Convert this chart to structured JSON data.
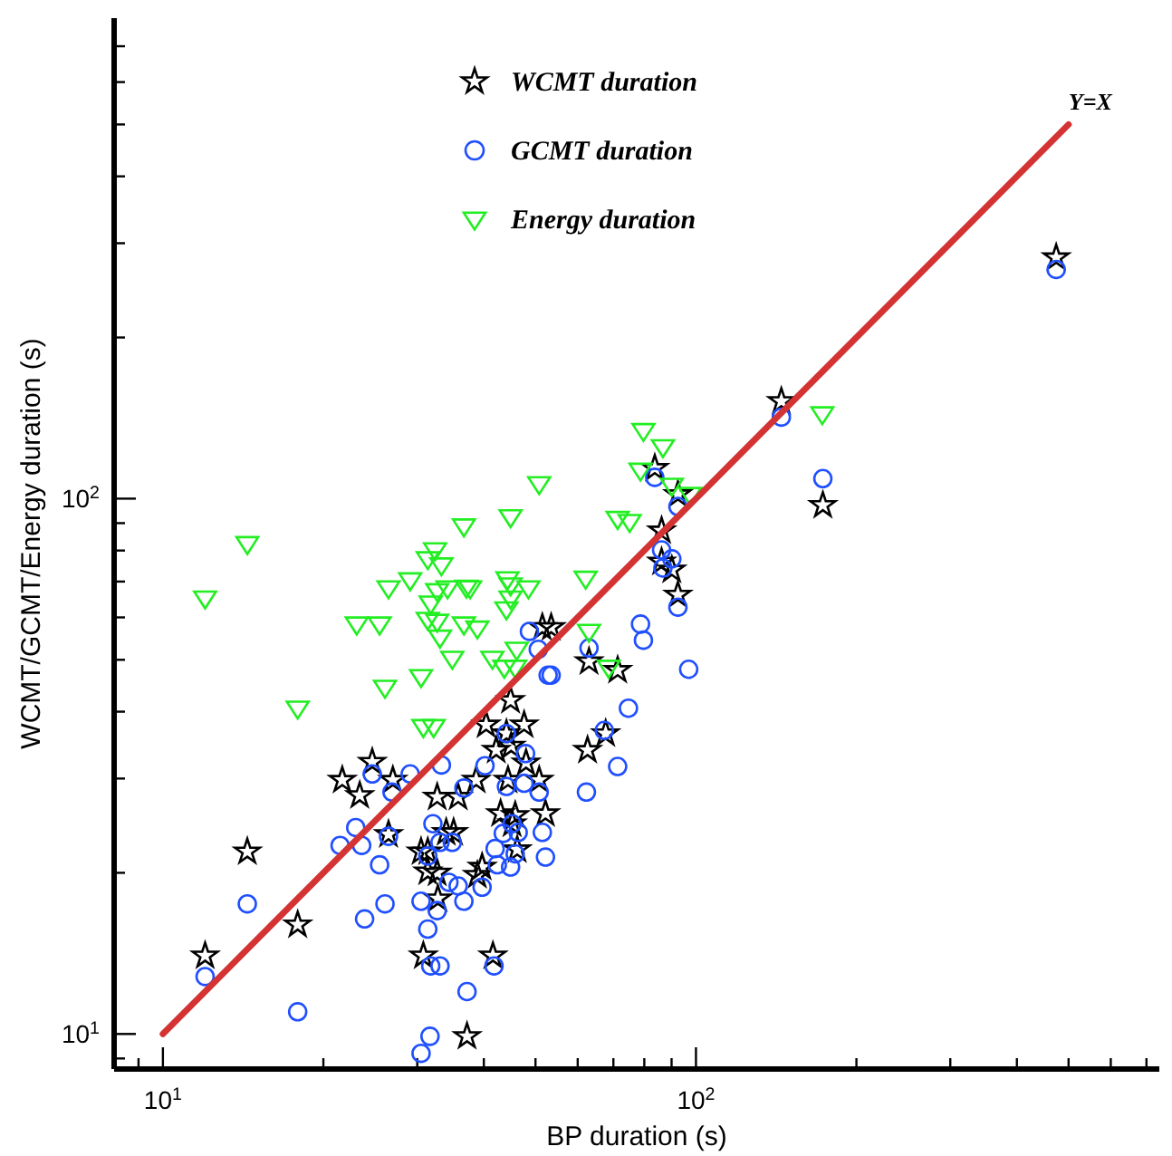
{
  "chart_data": {
    "type": "scatter",
    "xlabel": "BP duration (s)",
    "ylabel": "WCMT/GCMT/Energy duration (s)",
    "log": "xy",
    "grid": false,
    "legend": "top",
    "xlim": [
      8.1,
      740
    ],
    "ylim": [
      8.6,
      790
    ],
    "xticks": [
      {
        "value": 9,
        "label": null
      },
      {
        "value": 10,
        "label": "10$^{1}$"
      },
      {
        "value": 20,
        "label": null
      },
      {
        "value": 30,
        "label": null
      },
      {
        "value": 40,
        "label": null
      },
      {
        "value": 50,
        "label": null
      },
      {
        "value": 60,
        "label": null
      },
      {
        "value": 70,
        "label": null
      },
      {
        "value": 80,
        "label": null
      },
      {
        "value": 90,
        "label": null
      },
      {
        "value": 100,
        "label": "10$^{2}$"
      },
      {
        "value": 200,
        "label": null
      },
      {
        "value": 300,
        "label": null
      },
      {
        "value": 400,
        "label": null
      },
      {
        "value": 500,
        "label": null
      },
      {
        "value": 600,
        "label": null
      },
      {
        "value": 700,
        "label": null
      }
    ],
    "yticks": [
      {
        "value": 9,
        "label": null
      },
      {
        "value": 10,
        "label": "10$^{1}$"
      },
      {
        "value": 20,
        "label": null
      },
      {
        "value": 30,
        "label": null
      },
      {
        "value": 40,
        "label": null
      },
      {
        "value": 50,
        "label": null
      },
      {
        "value": 60,
        "label": null
      },
      {
        "value": 70,
        "label": null
      },
      {
        "value": 80,
        "label": null
      },
      {
        "value": 90,
        "label": null
      },
      {
        "value": 100,
        "label": "10$^{2}$"
      },
      {
        "value": 200,
        "label": null
      },
      {
        "value": 300,
        "label": null
      },
      {
        "value": 400,
        "label": null
      },
      {
        "value": 500,
        "label": null
      },
      {
        "value": 600,
        "label": null
      },
      {
        "value": 700,
        "label": null
      }
    ],
    "annotations": [
      {
        "text": "Y=X",
        "x": 500,
        "y": 500
      }
    ],
    "series": [
      {
        "name": "WCMT duration",
        "color": "#000000",
        "marker": "star",
        "x": [
          12.0,
          14.4,
          17.9,
          21.7,
          23.4,
          24.7,
          27.0,
          26.5,
          30.5,
          31.4,
          31.4,
          32.7,
          32.8,
          30.8,
          37.2,
          32.7,
          35.8,
          34.0,
          35.1,
          38.7,
          40.4,
          42.2,
          45.0,
          44.1,
          47.6,
          48.0,
          44.4,
          50.8,
          43.0,
          45.8,
          45.2,
          52.2,
          46.2,
          39.7,
          38.9,
          41.6,
          44.9,
          51.5,
          53.5,
          63.0,
          71.3,
          62.6,
          67.7,
          83.7,
          92.5,
          86.2,
          86.2,
          90.1,
          92.5,
          144.6,
          173,
          474
        ],
        "values": [
          14.0,
          21.9,
          16.0,
          29.8,
          27.9,
          32.2,
          29.8,
          23.6,
          21.9,
          21.9,
          20.1,
          20.0,
          17.9,
          14.0,
          9.9,
          27.7,
          27.7,
          23.8,
          23.8,
          29.8,
          37.8,
          33.9,
          34.5,
          36.4,
          37.8,
          32.1,
          29.8,
          29.8,
          25.8,
          25.6,
          24.7,
          25.8,
          22.1,
          20.5,
          19.8,
          14.0,
          42.0,
          57.5,
          57.5,
          49.6,
          47.8,
          33.9,
          36.4,
          114,
          101.8,
          87.1,
          76.2,
          73.6,
          66.1,
          152,
          97.2,
          282
        ]
      },
      {
        "name": "GCMT duration",
        "color": "#1f4fff",
        "marker": "circle",
        "x": [
          12.0,
          14.4,
          17.9,
          21.5,
          23.0,
          23.6,
          25.5,
          26.1,
          23.9,
          24.7,
          26.9,
          29.1,
          33.3,
          36.7,
          26.5,
          32.1,
          33.1,
          31.4,
          34.9,
          30.5,
          32.7,
          31.4,
          34.4,
          35.8,
          31.8,
          33.1,
          37.2,
          31.7,
          30.5,
          40.2,
          44.1,
          47.6,
          50.8,
          47.9,
          51.5,
          52.2,
          45.2,
          46.4,
          43.5,
          42.0,
          42.4,
          44.9,
          45.8,
          39.7,
          36.7,
          41.8,
          44.1,
          48.7,
          50.6,
          52.8,
          53.5,
          63.0,
          67.3,
          71.3,
          62.3,
          74.7,
          78.7,
          79.7,
          83.7,
          86.2,
          90.1,
          86.7,
          92.5,
          92.5,
          96.9,
          144.6,
          173,
          474
        ],
        "values": [
          12.8,
          17.5,
          11.0,
          22.5,
          24.3,
          22.5,
          20.7,
          17.5,
          16.4,
          30.6,
          28.3,
          30.6,
          31.8,
          28.8,
          23.4,
          24.7,
          22.8,
          21.5,
          22.8,
          17.7,
          17.0,
          15.7,
          19.2,
          18.9,
          13.4,
          13.4,
          12.0,
          9.9,
          9.2,
          31.7,
          29.0,
          29.4,
          28.3,
          33.4,
          23.8,
          21.4,
          24.7,
          23.8,
          23.7,
          22.2,
          20.7,
          20.5,
          21.7,
          18.8,
          17.7,
          13.4,
          36.4,
          56.5,
          52.3,
          46.8,
          46.8,
          52.6,
          36.9,
          31.6,
          28.3,
          40.6,
          58.3,
          54.4,
          109.6,
          80.2,
          77.2,
          74.2,
          96.7,
          62.7,
          48.0,
          142,
          109,
          268
        ]
      },
      {
        "name": "Energy duration",
        "color": "#22ee22",
        "marker": "triangle",
        "x": [
          12.0,
          14.4,
          17.9,
          23.1,
          25.5,
          26.1,
          26.5,
          29.1,
          30.5,
          30.8,
          32.2,
          31.4,
          31.8,
          31.4,
          32.4,
          32.7,
          32.7,
          33.1,
          33.3,
          34.2,
          34.9,
          36.7,
          37.1,
          36.7,
          37.7,
          38.9,
          41.5,
          43.7,
          44.1,
          44.3,
          44.9,
          44.9,
          44.9,
          46.1,
          45.8,
          48.5,
          50.8,
          62.1,
          63.0,
          68.6,
          71.3,
          75.1,
          78.7,
          79.7,
          86.7,
          90.1,
          97.5,
          172.6
        ],
        "values": [
          65.2,
          82.4,
          40.6,
          58.3,
          58.3,
          44.4,
          68.1,
          70.5,
          46.5,
          37.5,
          37.5,
          77.2,
          63.8,
          59.5,
          80.2,
          67.3,
          59.0,
          55.1,
          75.2,
          68.1,
          50.3,
          88.9,
          68.3,
          58.3,
          68.1,
          57.3,
          50.3,
          48.4,
          62.2,
          70.8,
          69.0,
          65.2,
          92.5,
          52.3,
          48.4,
          68.1,
          106.6,
          71.0,
          56.5,
          48.4,
          91.8,
          90.6,
          113,
          134,
          125,
          105.9,
          101.8,
          144
        ]
      },
      {
        "type": "line",
        "color": "#d43333",
        "marker": "none",
        "line_style": "solid",
        "x": [
          10,
          500
        ],
        "values": [
          10,
          500
        ]
      }
    ]
  }
}
